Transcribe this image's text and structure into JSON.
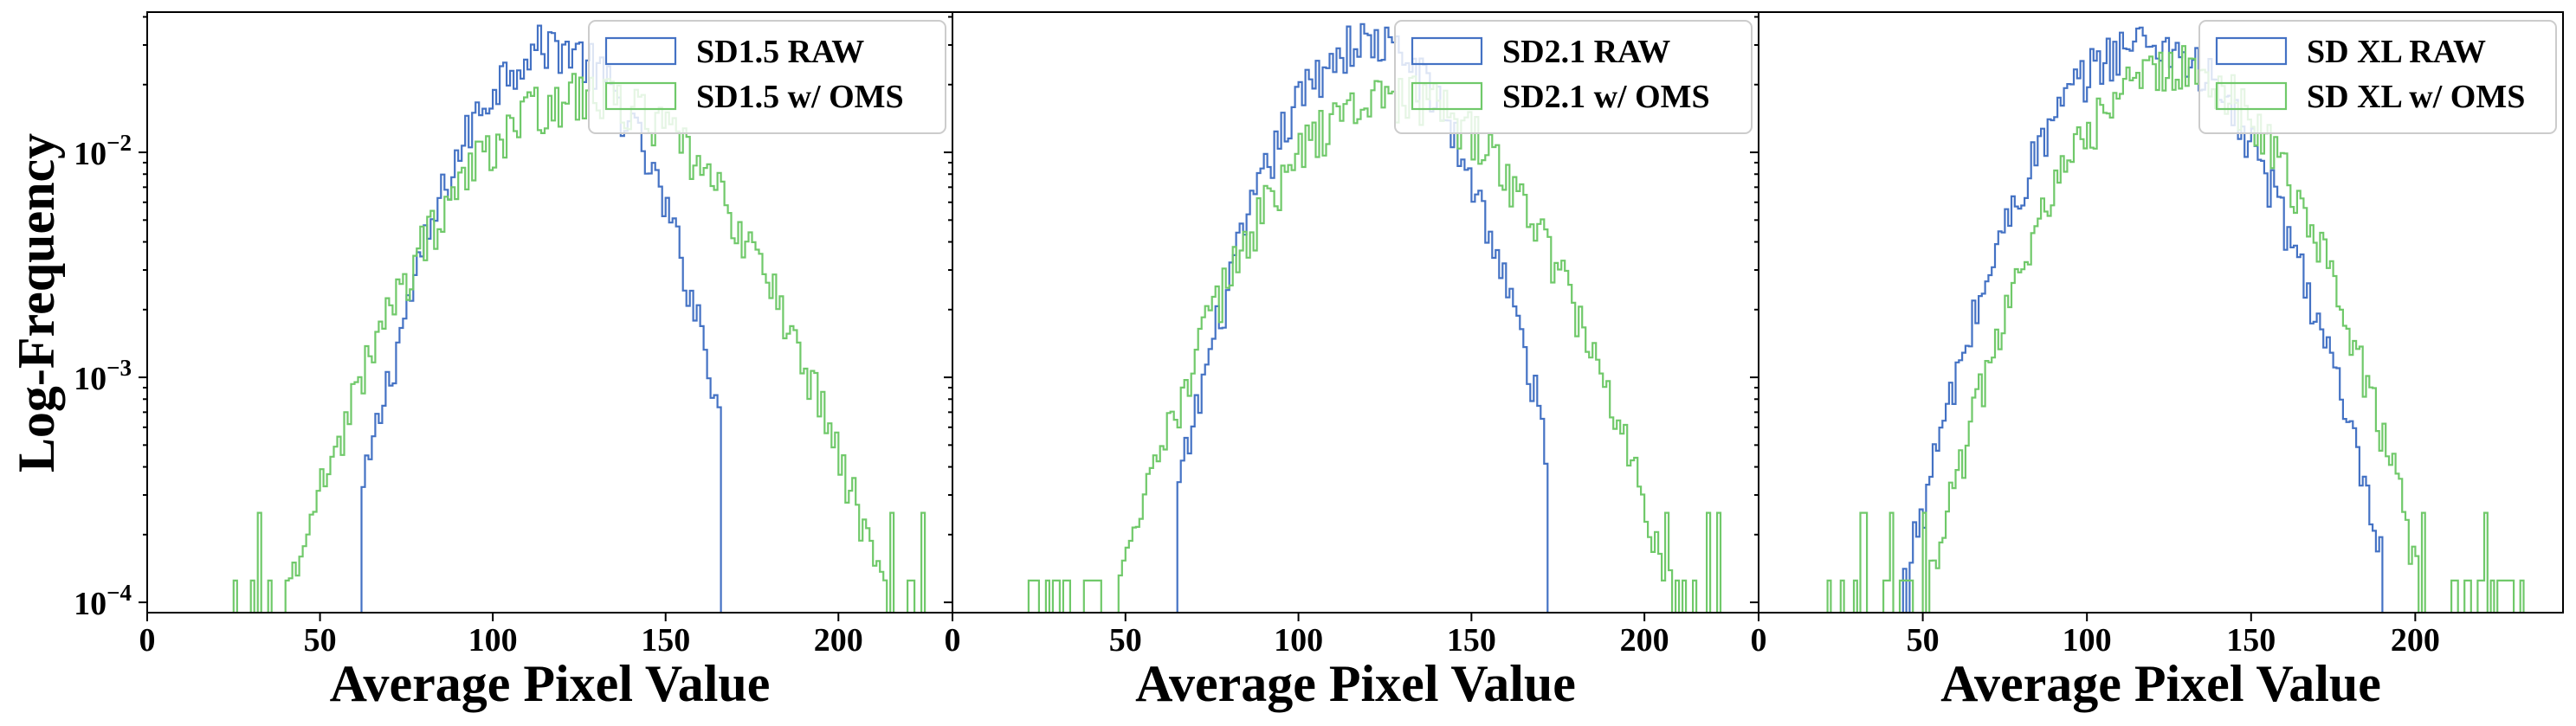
{
  "figure": {
    "ylabel": "Log-Frequency",
    "y_scale": "log",
    "y_ticks": [
      {
        "value": 0.0001,
        "base": "10",
        "exp": "−4"
      },
      {
        "value": 0.001,
        "base": "10",
        "exp": "−3"
      },
      {
        "value": 0.01,
        "base": "10",
        "exp": "−2"
      }
    ],
    "ylim": [
      9e-05,
      0.042
    ],
    "colors": {
      "raw": "#4472c4",
      "oms": "#70c96a"
    }
  },
  "chart_data": [
    {
      "type": "histogram",
      "xlabel": "Average Pixel Value",
      "xlim": [
        0,
        233
      ],
      "xticks": [
        "0",
        "50",
        "100",
        "150",
        "200"
      ],
      "legend_position": "upper-right",
      "series": [
        {
          "name": "SD1.5 RAW",
          "key": "raw",
          "mu": 117,
          "sigma": 18,
          "peak": 0.03,
          "min_x": 62,
          "max_x": 166
        },
        {
          "name": "SD1.5 w/ OMS",
          "key": "oms",
          "mu": 127,
          "sigma": 27,
          "peak": 0.018,
          "min_x": 22,
          "max_x": 225
        }
      ]
    },
    {
      "type": "histogram",
      "xlabel": "Average Pixel Value",
      "xlim": [
        0,
        233
      ],
      "xticks": [
        "0",
        "50",
        "100",
        "150",
        "200"
      ],
      "legend_position": "upper-right",
      "series": [
        {
          "name": "SD2.1 RAW",
          "key": "raw",
          "mu": 120,
          "sigma": 18,
          "peak": 0.031,
          "min_x": 65,
          "max_x": 172
        },
        {
          "name": "SD2.1 w/ OMS",
          "key": "oms",
          "mu": 128,
          "sigma": 25,
          "peak": 0.018,
          "min_x": 20,
          "max_x": 225
        }
      ]
    },
    {
      "type": "histogram",
      "xlabel": "Average Pixel Value",
      "xlim": [
        0,
        245
      ],
      "xticks": [
        "0",
        "50",
        "100",
        "150",
        "200"
      ],
      "legend_position": "upper-right",
      "series": [
        {
          "name": "SD XL RAW",
          "key": "raw",
          "mu": 118,
          "sigma": 22,
          "peak": 0.031,
          "min_x": 40,
          "max_x": 190
        },
        {
          "name": "SD XL w/ OMS",
          "key": "oms",
          "mu": 127,
          "sigma": 23,
          "peak": 0.024,
          "min_x": 20,
          "max_x": 238
        }
      ]
    }
  ]
}
